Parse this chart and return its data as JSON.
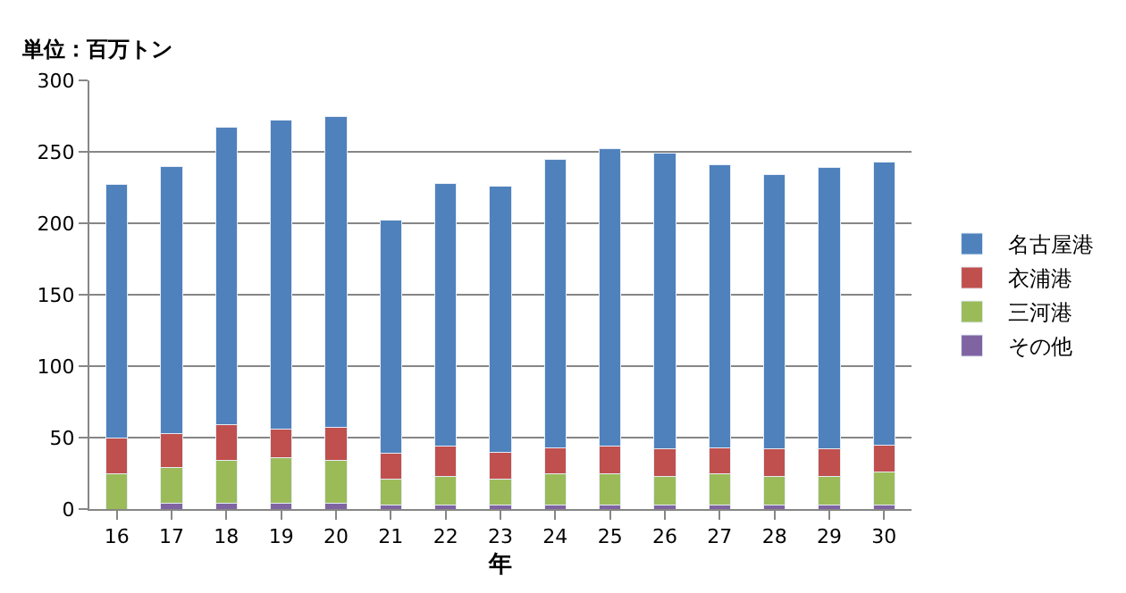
{
  "chart_data": {
    "type": "bar",
    "stacked": true,
    "title": "単位：百万トン",
    "xlabel": "年",
    "categories": [
      "16",
      "17",
      "18",
      "19",
      "20",
      "21",
      "22",
      "23",
      "24",
      "25",
      "26",
      "27",
      "28",
      "29",
      "30"
    ],
    "series": [
      {
        "name": "その他",
        "color": "#8064a2",
        "values": [
          0,
          4,
          4,
          4,
          4,
          3,
          3,
          3,
          3,
          3,
          3,
          3,
          3,
          3,
          3
        ]
      },
      {
        "name": "三河港",
        "color": "#9bbb59",
        "values": [
          25,
          25,
          30,
          32,
          30,
          18,
          20,
          18,
          22,
          22,
          20,
          22,
          20,
          20,
          23
        ]
      },
      {
        "name": "衣浦港",
        "color": "#c0504d",
        "values": [
          25,
          24,
          25,
          20,
          23,
          18,
          21,
          19,
          18,
          19,
          19,
          18,
          19,
          19,
          19
        ]
      },
      {
        "name": "名古屋港",
        "color": "#4f81bd",
        "values": [
          177,
          187,
          208,
          216,
          218,
          163,
          184,
          186,
          202,
          208,
          207,
          198,
          192,
          197,
          198
        ]
      }
    ],
    "ylim": [
      0,
      300
    ],
    "yticks": [
      0,
      50,
      100,
      150,
      200,
      250,
      300
    ],
    "grid": "y",
    "legend": "right"
  }
}
